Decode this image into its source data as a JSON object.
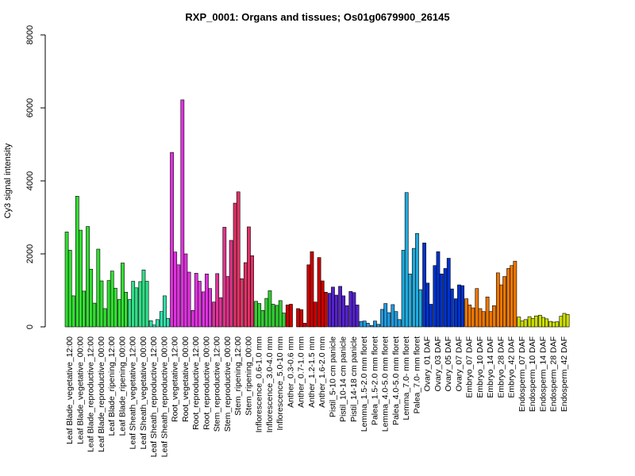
{
  "chart_data": {
    "type": "bar",
    "title": "RXP_0001: Organs and tissues; Os01g0679900_26145",
    "xlabel": "",
    "ylabel": "Cy3 signal intensity",
    "ylim": [
      0,
      8000
    ],
    "yticks": [
      0,
      2000,
      4000,
      6000,
      8000
    ],
    "grid": false,
    "legend": "none",
    "groups": [
      {
        "label": "Leaf Blade_vegetative_12:00",
        "color": "#33dd33",
        "values": [
          2600,
          2100,
          850
        ]
      },
      {
        "label": "Leaf Blade_vegetative_00:00",
        "color": "#33dd33",
        "values": [
          3580,
          2650,
          980
        ]
      },
      {
        "label": "Leaf Blade_reproductive_12:00",
        "color": "#33dd33",
        "values": [
          2750,
          1580,
          650
        ]
      },
      {
        "label": "Leaf Blade_reproductive_00:00",
        "color": "#33dd33",
        "values": [
          2130,
          1260,
          500
        ]
      },
      {
        "label": "Leaf Blade_ripening_12:00",
        "color": "#33dd33",
        "values": [
          1270,
          1530,
          1060
        ]
      },
      {
        "label": "Leaf Blade_ripening_00:00",
        "color": "#33dd33",
        "values": [
          750,
          1750,
          950
        ]
      },
      {
        "label": "Leaf Sheath_vegetative_12:00",
        "color": "#33dd88",
        "values": [
          750,
          1250,
          1070
        ]
      },
      {
        "label": "Leaf Sheath_vegetative_00:00",
        "color": "#33dd88",
        "values": [
          1240,
          1560,
          1250
        ]
      },
      {
        "label": "Leaf Sheath_reproductive_12:00",
        "color": "#33ddaa",
        "values": [
          170,
          50,
          200
        ]
      },
      {
        "label": "Leaf Sheath_reproductive_00:00",
        "color": "#33ddaa",
        "values": [
          420,
          850,
          230
        ]
      },
      {
        "label": "Root_vegetative_12:00",
        "color": "#dd33dd",
        "values": [
          4780,
          2050,
          1700
        ]
      },
      {
        "label": "Root_vegetative_00:00",
        "color": "#dd33dd",
        "values": [
          6220,
          2000,
          1500
        ]
      },
      {
        "label": "Root_reproductive_12:00",
        "color": "#dd33dd",
        "values": [
          450,
          1470,
          1250
        ]
      },
      {
        "label": "Root_reproductive_00:00",
        "color": "#dd33dd",
        "values": [
          960,
          1450,
          1050
        ]
      },
      {
        "label": "Stem_reproductive_12:00",
        "color": "#dd3399",
        "values": [
          680,
          1460,
          800
        ]
      },
      {
        "label": "Stem_reproductive_00:00",
        "color": "#dd3388",
        "values": [
          2730,
          1380,
          2370
        ]
      },
      {
        "label": "Stem_ripening_12:00",
        "color": "#dd3366",
        "values": [
          3390,
          3700,
          1320
        ]
      },
      {
        "label": "Stem_ripening_00:00",
        "color": "#dd3366",
        "values": [
          1760,
          2740,
          1950
        ]
      },
      {
        "label": "Inflorescence_0.6-1.0 mm",
        "color": "#33cc33",
        "values": [
          700,
          640,
          450
        ]
      },
      {
        "label": "Inflorescence_3.0-4.0 mm",
        "color": "#33cc33",
        "values": [
          780,
          990,
          620
        ]
      },
      {
        "label": "Inflorescence_5.0-10 mm",
        "color": "#33cc33",
        "values": [
          590,
          720,
          380
        ]
      },
      {
        "label": "Anther_0.3-0.6 mm",
        "color": "#cc0000",
        "values": [
          600,
          620
        ]
      },
      {
        "label": "Anther_0.7-1.0 mm",
        "color": "#cc0000",
        "values": [
          500,
          470,
          100
        ]
      },
      {
        "label": "Anther_1.2-1.5 mm",
        "color": "#cc0000",
        "values": [
          1700,
          2060,
          680
        ]
      },
      {
        "label": "Anther_1.6-2.0 mm",
        "color": "#cc0000",
        "values": [
          1900,
          1260,
          950
        ]
      },
      {
        "label": "Pistil_5-10 cm panicle",
        "color": "#5522cc",
        "values": [
          920,
          1090,
          870
        ]
      },
      {
        "label": "Pistil_10-14 cm panicle",
        "color": "#5522cc",
        "values": [
          1110,
          850,
          580
        ]
      },
      {
        "label": "Pistil_14-18 cm panicle",
        "color": "#5522cc",
        "values": [
          970,
          940,
          600
        ]
      },
      {
        "label": "Lemma_1.5-2.0 mm floret",
        "color": "#2299dd",
        "values": [
          150,
          160,
          100
        ]
      },
      {
        "label": "Palea_1.5-2.0 mm floret",
        "color": "#2299dd",
        "values": [
          40,
          160,
          70
        ]
      },
      {
        "label": "Lemma_4.0-5.0 mm floret",
        "color": "#2299dd",
        "values": [
          480,
          640,
          390
        ]
      },
      {
        "label": "Palea_4.0-5.0 mm floret",
        "color": "#2299dd",
        "values": [
          610,
          420,
          200
        ]
      },
      {
        "label": "Lemma_7.0- mm floret",
        "color": "#22aadd",
        "values": [
          2100,
          3680,
          1450
        ]
      },
      {
        "label": "Palea_7.0- mm floret",
        "color": "#22aadd",
        "values": [
          2150,
          2560,
          1020
        ]
      },
      {
        "label": "Ovary_01 DAF",
        "color": "#0033cc",
        "values": [
          2300,
          1200,
          620
        ]
      },
      {
        "label": "Ovary_03 DAF",
        "color": "#0033cc",
        "values": [
          1680,
          2060,
          1450
        ]
      },
      {
        "label": "Ovary_05 DAF",
        "color": "#0033cc",
        "values": [
          1600,
          1880,
          1040
        ]
      },
      {
        "label": "Ovary_07 DAF",
        "color": "#0033cc",
        "values": [
          770,
          1150,
          1130
        ]
      },
      {
        "label": "Embryo_07 DAF",
        "color": "#ee7700",
        "values": [
          770,
          600,
          520
        ]
      },
      {
        "label": "Embryo_10 DAF",
        "color": "#ee7700",
        "values": [
          1050,
          500,
          420
        ]
      },
      {
        "label": "Embryo_14 DAF",
        "color": "#ee7700",
        "values": [
          820,
          420,
          580
        ]
      },
      {
        "label": "Embryo_28 DAF",
        "color": "#ee7700",
        "values": [
          1480,
          1150,
          1380
        ]
      },
      {
        "label": "Embryo_42 DAF",
        "color": "#ee7700",
        "values": [
          1600,
          1680,
          1800
        ]
      },
      {
        "label": "Endosperm_07 DAF",
        "color": "#ccdd00",
        "values": [
          270,
          160,
          200
        ]
      },
      {
        "label": "Endosperm_10 DAF",
        "color": "#ccdd00",
        "values": [
          280,
          230,
          300
        ]
      },
      {
        "label": "Endosperm_14 DAF",
        "color": "#ccdd00",
        "values": [
          320,
          260,
          220
        ]
      },
      {
        "label": "Endosperm_28 DAF",
        "color": "#ccdd00",
        "values": [
          150,
          130,
          140
        ]
      },
      {
        "label": "Endosperm_42 DAF",
        "color": "#ccdd00",
        "values": [
          290,
          370,
          340
        ]
      }
    ]
  }
}
